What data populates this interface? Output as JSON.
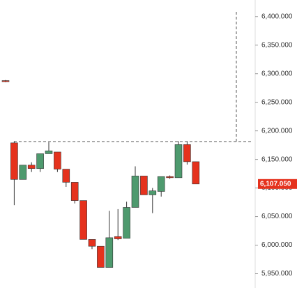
{
  "chart_data": {
    "type": "candlestick",
    "open": [
      6288,
      6179,
      6115,
      6140,
      6134,
      6160,
      6163,
      6133,
      6110,
      6078,
      6010,
      5998,
      5961,
      6015,
      6012,
      6066,
      6121,
      6088,
      6094,
      6120,
      6118,
      6176,
      6146
    ],
    "high": [
      6289,
      6182,
      6140,
      6145,
      6160,
      6180,
      6163,
      6133,
      6110,
      6078,
      6010,
      5998,
      6060,
      6063,
      6076,
      6138,
      6121,
      6100,
      6120,
      6122,
      6182,
      6182,
      6146
    ],
    "low": [
      6285,
      6070,
      6115,
      6128,
      6128,
      6160,
      6128,
      6102,
      6073,
      6010,
      5993,
      5961,
      5961,
      6009,
      6012,
      6066,
      6088,
      6056,
      6085,
      6116,
      6118,
      6141,
      6107
    ],
    "close": [
      6286,
      6115,
      6140,
      6134,
      6160,
      6165,
      6133,
      6110,
      6078,
      6010,
      5998,
      5961,
      6013,
      6011,
      6066,
      6121,
      6088,
      6095,
      6120,
      6118,
      6176,
      6146,
      6107.05
    ],
    "up_color": "#4e9a6e",
    "down_color": "#e5321d",
    "ylim": [
      5925,
      6429
    ],
    "yticks": [
      {
        "value": 5950,
        "label": "5,950.000"
      },
      {
        "value": 6000,
        "label": "6,000.000"
      },
      {
        "value": 6050,
        "label": "6,050.000"
      },
      {
        "value": 6100,
        "label": "6,100.000"
      },
      {
        "value": 6150,
        "label": "6,150.000"
      },
      {
        "value": 6200,
        "label": "6,200.000"
      },
      {
        "value": 6250,
        "label": "6,250.000"
      },
      {
        "value": 6300,
        "label": "6,300.000"
      },
      {
        "value": 6350,
        "label": "6,350.000"
      },
      {
        "value": 6400,
        "label": "6,400.000"
      }
    ],
    "last_price": {
      "value": 6107.05,
      "label": "6,107.050"
    }
  }
}
